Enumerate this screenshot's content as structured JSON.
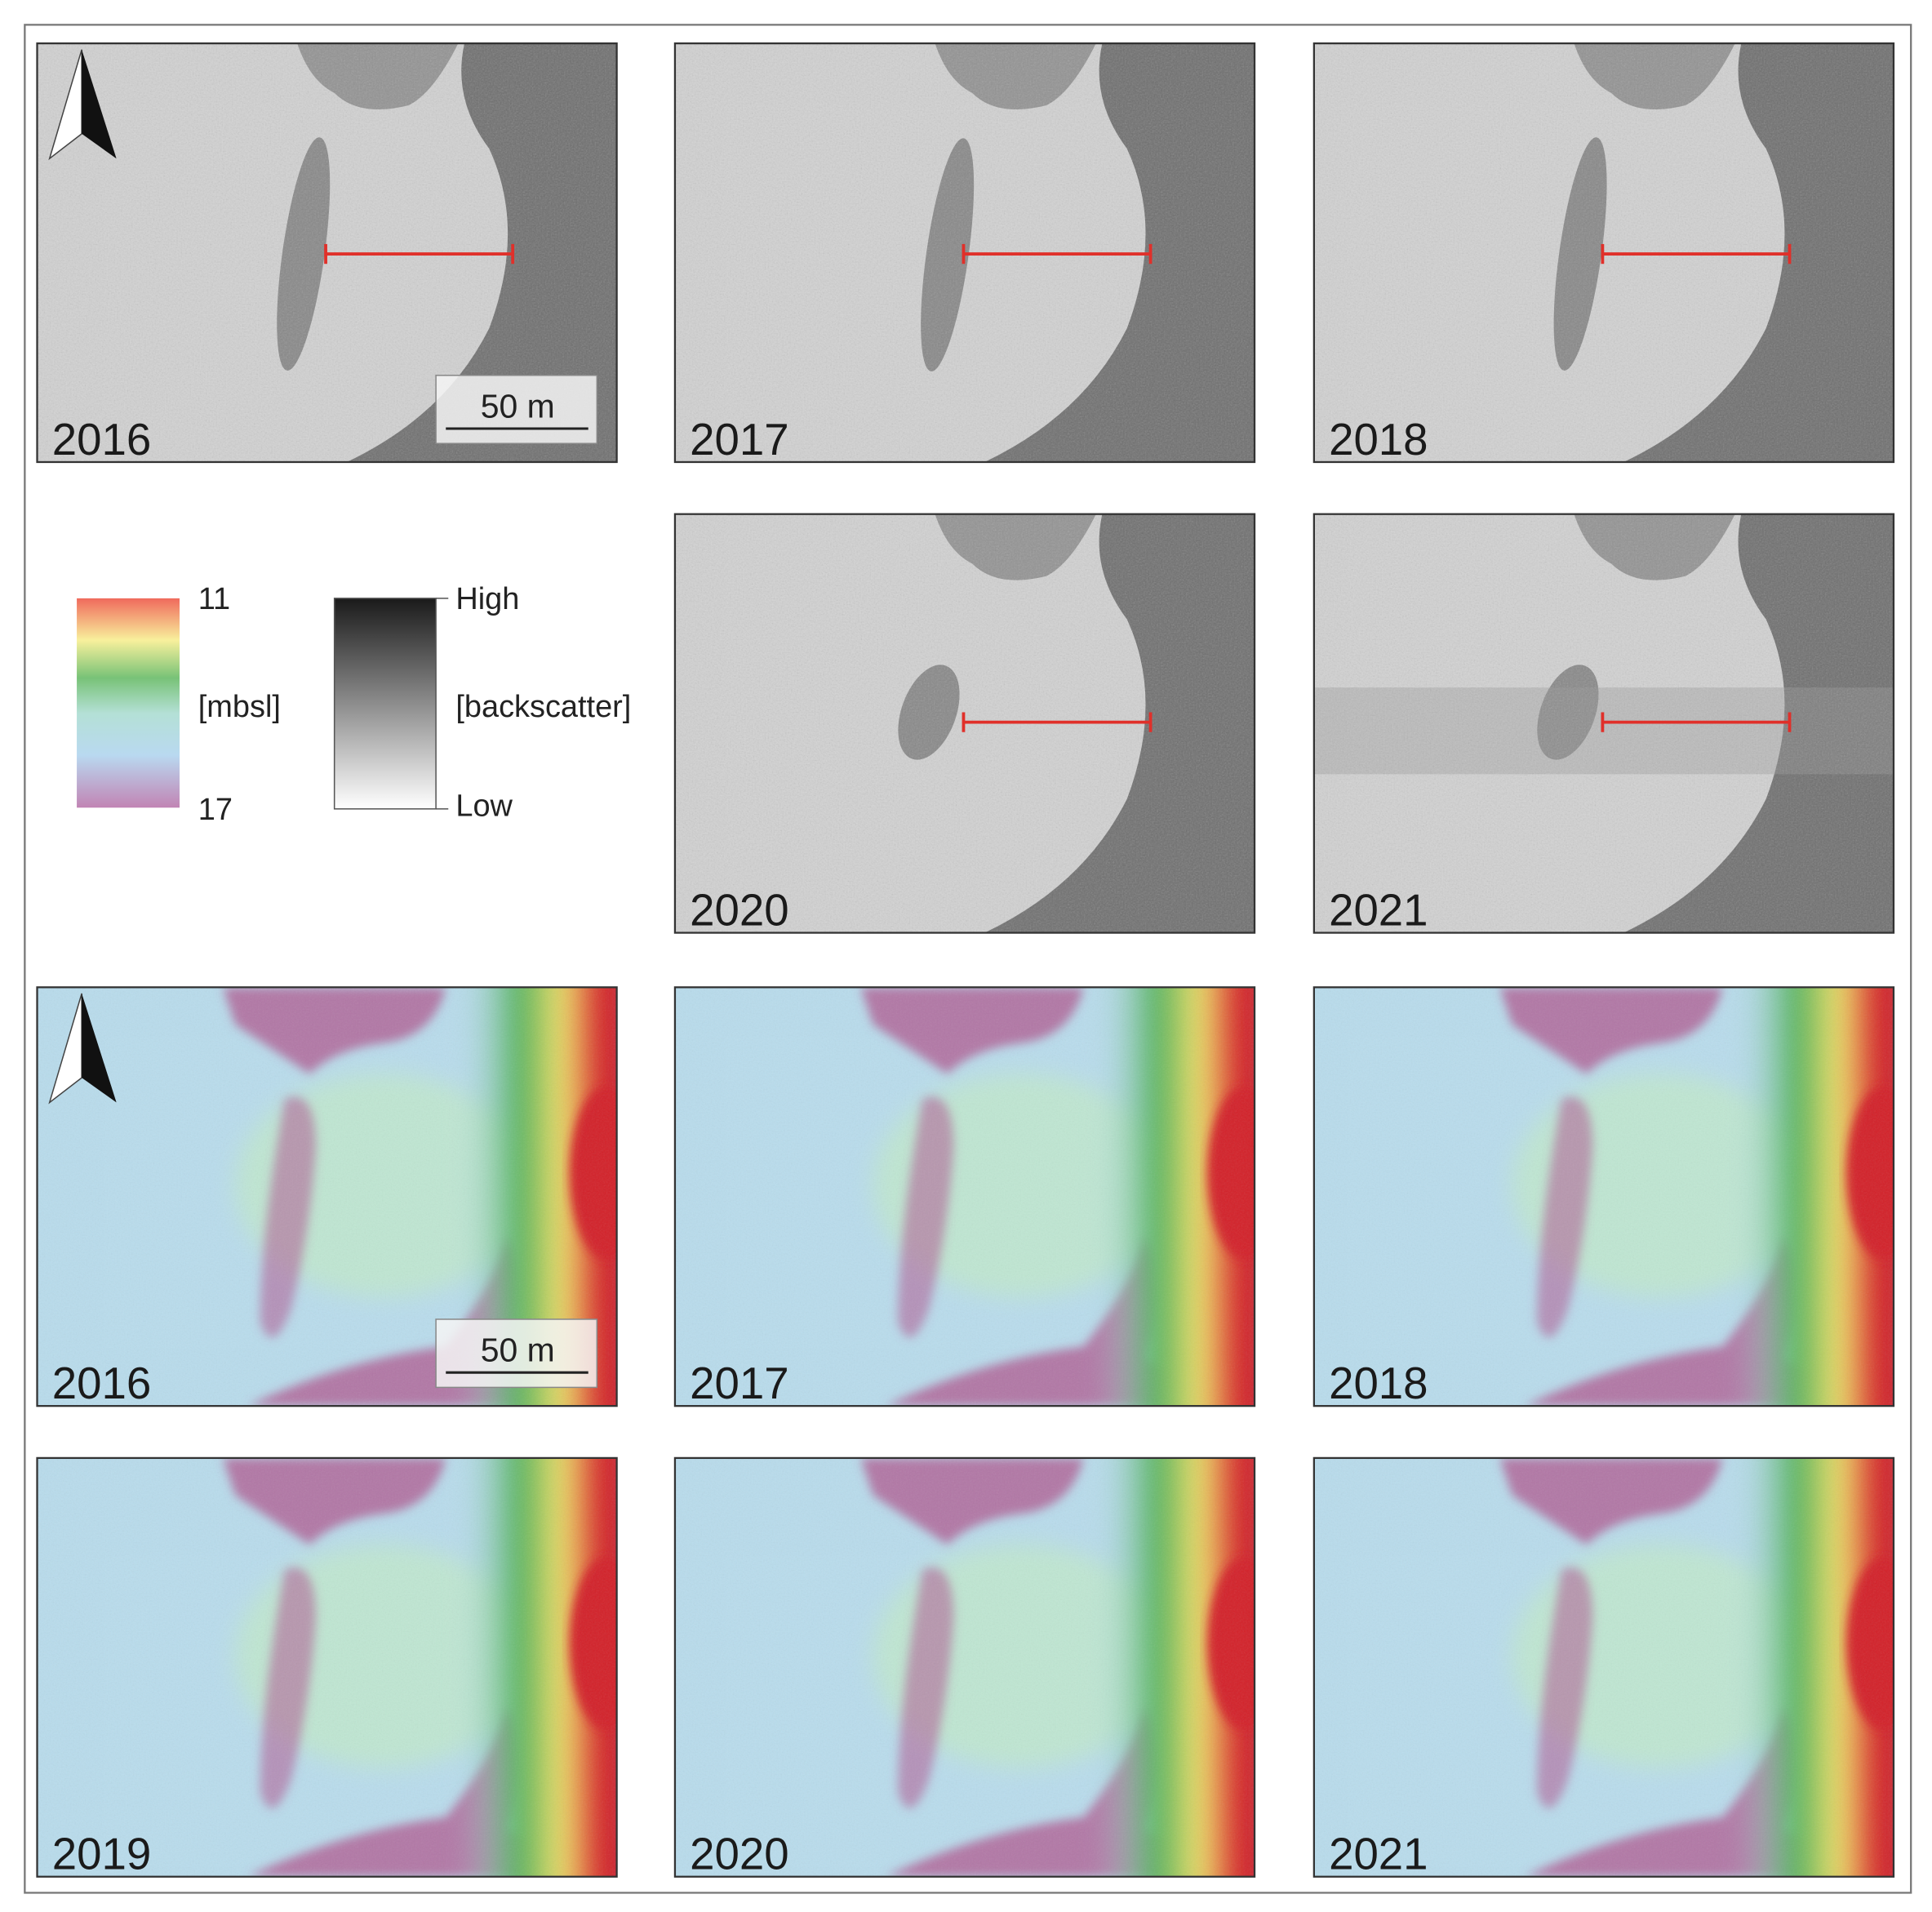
{
  "backscatter_panels": [
    {
      "year": "2016"
    },
    {
      "year": "2017"
    },
    {
      "year": "2018"
    },
    {
      "year": "2020"
    },
    {
      "year": "2021"
    }
  ],
  "bathymetry_panels": [
    {
      "year": "2016"
    },
    {
      "year": "2017"
    },
    {
      "year": "2018"
    },
    {
      "year": "2019"
    },
    {
      "year": "2020"
    },
    {
      "year": "2021"
    }
  ],
  "scale_bar": "50 m",
  "depth_legend": {
    "top": "11",
    "unit": "[mbsl]",
    "bottom": "17"
  },
  "backscatter_legend": {
    "top": "High",
    "unit": "[backscatter]",
    "bottom": "Low"
  }
}
